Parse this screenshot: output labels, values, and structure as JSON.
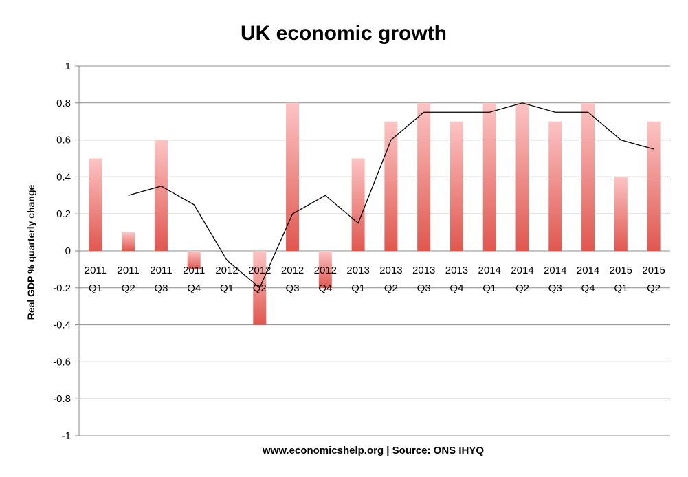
{
  "chart_data": {
    "type": "bar",
    "title": "UK economic growth",
    "xlabel": "www.economicshelp.org | Source: ONS  IHYQ",
    "ylabel": "Real GDP % quarterly change",
    "ylim": [
      -1,
      1
    ],
    "yticks": [
      "1",
      "0.8",
      "0.6",
      "0.4",
      "0.2",
      "0",
      "-0.2",
      "-0.4",
      "-0.6",
      "-0.8",
      "-1"
    ],
    "grid": true,
    "legend": "none",
    "categories": [
      {
        "year": "2011",
        "quarter": "Q1"
      },
      {
        "year": "2011",
        "quarter": "Q2"
      },
      {
        "year": "2011",
        "quarter": "Q3"
      },
      {
        "year": "2011",
        "quarter": "Q4"
      },
      {
        "year": "2012",
        "quarter": "Q1"
      },
      {
        "year": "2012",
        "quarter": "Q2"
      },
      {
        "year": "2012",
        "quarter": "Q3"
      },
      {
        "year": "2012",
        "quarter": "Q4"
      },
      {
        "year": "2013",
        "quarter": "Q1"
      },
      {
        "year": "2013",
        "quarter": "Q2"
      },
      {
        "year": "2013",
        "quarter": "Q3"
      },
      {
        "year": "2013",
        "quarter": "Q4"
      },
      {
        "year": "2014",
        "quarter": "Q1"
      },
      {
        "year": "2014",
        "quarter": "Q2"
      },
      {
        "year": "2014",
        "quarter": "Q3"
      },
      {
        "year": "2014",
        "quarter": "Q4"
      },
      {
        "year": "2015",
        "quarter": "Q1"
      },
      {
        "year": "2015",
        "quarter": "Q2"
      }
    ],
    "series": [
      {
        "type": "bar",
        "color": "#f08080",
        "values": [
          0.5,
          0.1,
          0.6,
          -0.1,
          0,
          -0.4,
          0.8,
          -0.2,
          0.5,
          0.7,
          0.8,
          0.7,
          0.8,
          0.8,
          0.7,
          0.8,
          0.4,
          0.7
        ]
      },
      {
        "type": "line",
        "color": "#000000",
        "values": [
          null,
          0.3,
          0.35,
          0.25,
          -0.05,
          -0.2,
          0.2,
          0.3,
          0.15,
          0.6,
          0.75,
          0.75,
          0.75,
          0.8,
          0.75,
          0.75,
          0.6,
          0.55
        ]
      }
    ]
  }
}
